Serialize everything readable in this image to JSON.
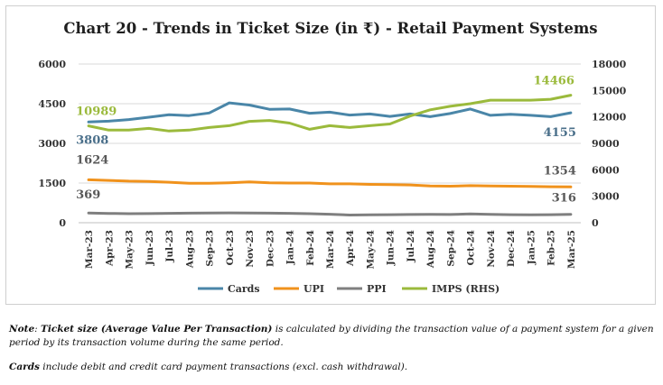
{
  "chart_data": {
    "type": "line",
    "title": "Chart 20 - Trends in Ticket Size (in ₹) - Retail Payment Systems",
    "categories": [
      "Mar-23",
      "Apr-23",
      "May-23",
      "Jun-23",
      "Jul-23",
      "Aug-23",
      "Sep-23",
      "Oct-23",
      "Nov-23",
      "Dec-23",
      "Jan-24",
      "Feb-24",
      "Mar-24",
      "Apr-24",
      "May-24",
      "Jun-24",
      "Jul-24",
      "Aug-24",
      "Sep-24",
      "Oct-24",
      "Nov-24",
      "Dec-24",
      "Jan-25",
      "Feb-25",
      "Mar-25"
    ],
    "ylim_left": [
      0,
      6000
    ],
    "yticks_left": [
      "0",
      "1500",
      "3000",
      "4500",
      "6000"
    ],
    "ylim_right": [
      0,
      18000
    ],
    "yticks_right": [
      "0",
      "3000",
      "6000",
      "9000",
      "12000",
      "15000",
      "18000"
    ],
    "series": [
      {
        "name": "Cards",
        "axis": "left",
        "color": "#4a86a8",
        "values": [
          3808,
          3840,
          3900,
          3990,
          4080,
          4050,
          4150,
          4530,
          4450,
          4290,
          4300,
          4140,
          4180,
          4070,
          4110,
          4020,
          4110,
          4010,
          4130,
          4300,
          4060,
          4100,
          4060,
          4010,
          4155
        ]
      },
      {
        "name": "UPI",
        "axis": "left",
        "color": "#f0921c",
        "values": [
          1624,
          1600,
          1570,
          1560,
          1530,
          1490,
          1490,
          1510,
          1540,
          1510,
          1500,
          1500,
          1470,
          1470,
          1450,
          1440,
          1430,
          1390,
          1380,
          1400,
          1390,
          1380,
          1370,
          1360,
          1354
        ]
      },
      {
        "name": "PPI",
        "axis": "left",
        "color": "#7f7f7f",
        "values": [
          369,
          350,
          340,
          345,
          355,
          360,
          365,
          370,
          365,
          360,
          355,
          340,
          320,
          290,
          300,
          305,
          310,
          315,
          310,
          330,
          315,
          305,
          300,
          305,
          316
        ]
      },
      {
        "name": "IMPS (RHS)",
        "axis": "right",
        "color": "#9bba3c",
        "values": [
          10989,
          10500,
          10500,
          10700,
          10400,
          10500,
          10800,
          11000,
          11500,
          11600,
          11300,
          10600,
          11000,
          10800,
          11000,
          11200,
          12100,
          12800,
          13200,
          13500,
          13900,
          13900,
          13900,
          14000,
          14466
        ]
      }
    ],
    "data_labels": {
      "cards_first": "3808",
      "cards_last": "4155",
      "upi_first": "1624",
      "upi_last": "1354",
      "ppi_first": "369",
      "ppi_last": "316",
      "imps_first": "10989",
      "imps_last": "14466"
    },
    "legend": "bottom"
  },
  "notes": {
    "note_label": "Note",
    "note_colon": ": ",
    "note_bold": "Ticket size (Average Value Per Transaction)",
    "note_text": " is calculated by dividing the transaction value of a payment system for a given period by its transaction volume during the same period.",
    "cards_bold": "Cards",
    "cards_text": " include debit and credit card payment transactions (excl. cash withdrawal)."
  }
}
